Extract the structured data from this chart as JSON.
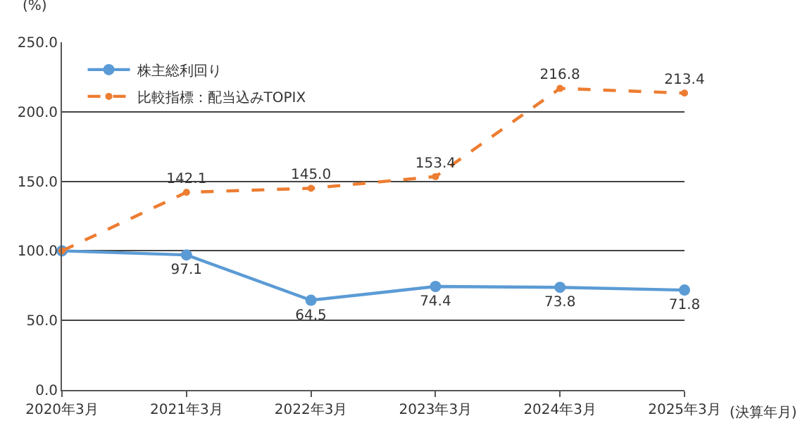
{
  "chart_data": {
    "type": "line",
    "ylabel": "(%)",
    "xlabel": "(決算年月)",
    "categories": [
      "2020年3月",
      "2021年3月",
      "2022年3月",
      "2023年3月",
      "2024年3月",
      "2025年3月"
    ],
    "series": [
      {
        "name": "株主総利回り",
        "color": "#5b9bd5",
        "values": [
          100,
          97.1,
          64.5,
          74.4,
          73.8,
          71.8
        ],
        "value_labels": [
          null,
          "97.1",
          "64.5",
          "74.4",
          "73.8",
          "71.8"
        ],
        "line_style": "solid"
      },
      {
        "name": "比較指標：配当込みTOPIX",
        "color": "#ed7d31",
        "values": [
          100,
          142.1,
          145.0,
          153.4,
          216.8,
          213.4
        ],
        "value_labels": [
          null,
          "142.1",
          "145.0",
          "153.4",
          "216.8",
          "213.4"
        ],
        "line_style": "dashed"
      }
    ],
    "ylim": [
      0,
      250
    ],
    "yticks": [
      {
        "value": 0,
        "label": "0.0"
      },
      {
        "value": 50,
        "label": "50.0"
      },
      {
        "value": 100,
        "label": "100.0"
      },
      {
        "value": 150,
        "label": "150.0"
      },
      {
        "value": 200,
        "label": "200.0"
      },
      {
        "value": 250,
        "label": "250.0"
      }
    ],
    "grid": "y",
    "legend": "top left",
    "marker": "circle"
  }
}
